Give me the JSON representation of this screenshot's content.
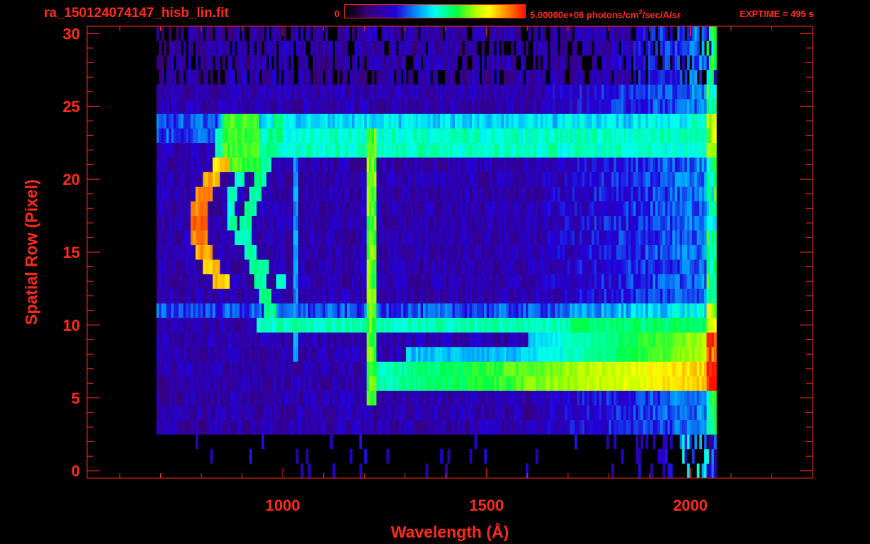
{
  "header": {
    "file_title": "ra_150124074147_hisb_lin.fit",
    "colorbar_min": "0",
    "colorbar_max_prefix": "5.00000e+06 photons/cm",
    "colorbar_max_sup": "2",
    "colorbar_max_suffix": "/sec/A/sr",
    "exptime": "EXPTIME = 495 s"
  },
  "chart_data": {
    "type": "heatmap",
    "title": "ra_150124074147_hisb_lin.fit",
    "xlabel": "Wavelength (Å)",
    "ylabel": "Spatial Row (Pixel)",
    "xlim": [
      520,
      2300
    ],
    "ylim": [
      -0.5,
      30.5
    ],
    "x_ticks": [
      1000,
      1500,
      2000
    ],
    "y_ticks": [
      0,
      5,
      10,
      15,
      20,
      25,
      30
    ],
    "colorbar": {
      "min": 0,
      "max": 5000000,
      "units": "photons/cm^2/sec/A/sr"
    },
    "exptime_s": 495,
    "detector_wavelength_range": [
      690,
      2060
    ],
    "features": [
      {
        "rows": [
          6,
          7
        ],
        "from": 1225,
        "to": 2060,
        "level": 0.72
      },
      {
        "rows": [
          10,
          10
        ],
        "from": 930,
        "to": 2060,
        "level": 0.52
      },
      {
        "rows": [
          22,
          23
        ],
        "from": 830,
        "to": 2060,
        "level": 0.5
      },
      {
        "rows": [
          5,
          24
        ],
        "at": 1216,
        "level": 0.78
      },
      {
        "rows": [
          13,
          21
        ],
        "at": 800,
        "level": 0.92
      }
    ]
  }
}
